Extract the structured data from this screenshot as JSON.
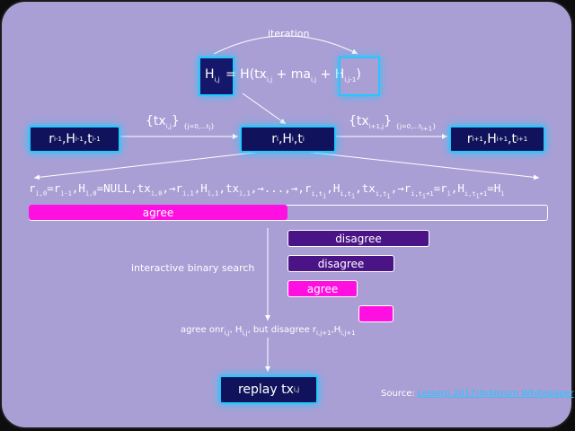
{
  "diagram": {
    "iteration_label": "iteration",
    "hash_label": "H",
    "hash_formula": "= H(tx",
    "formula_tail": " + ma",
    "formula_plus": " + H",
    "formula_close": ")",
    "tx_set_left": "{tx",
    "tx_set_left_sub": "{j=0,...t",
    "tx_set_right": "{tx",
    "tx_set_right_sub": "{j=0,...t",
    "node_prev": "r",
    "node_curr": "r",
    "node_next": "r",
    "sequence_text": "r",
    "agree_label": "agree",
    "disagree1_label": "disagree",
    "disagree2_label": "disagree",
    "agree2_label": "agree",
    "search_label": "interactive binary search",
    "result_label": "agree on",
    "result_mid": ", H",
    "result_tail": ", but disagree r",
    "replay_label": "replay tx",
    "source_prefix": "Source:",
    "source_link": "Leiserp 2017/Arbitrum Whitepaper"
  },
  "colors": {
    "background": "#a99fd5",
    "node": "#10135b",
    "accent": "#27c6ff",
    "agree": "#ff10e1",
    "disagree": "#4b1486"
  }
}
